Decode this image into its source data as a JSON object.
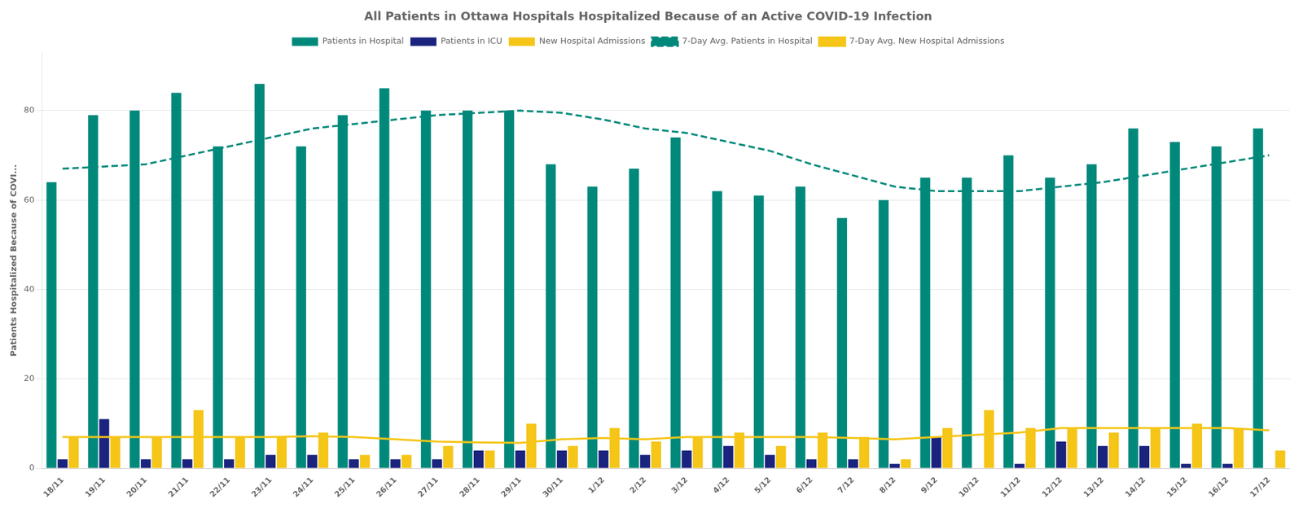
{
  "chart_data": {
    "type": "bar",
    "title": "All Patients in Ottawa Hospitals Hospitalized Because of an Active COVID-19 Infection",
    "ylabel": "Patients Hospitalized Because of COVI...",
    "categories": [
      "18/11",
      "19/11",
      "20/11",
      "21/11",
      "22/11",
      "23/11",
      "24/11",
      "25/11",
      "26/11",
      "27/11",
      "28/11",
      "29/11",
      "30/11",
      "1/12",
      "2/12",
      "3/12",
      "4/12",
      "5/12",
      "6/12",
      "7/12",
      "8/12",
      "9/12",
      "10/12",
      "11/12",
      "12/12",
      "13/12",
      "14/12",
      "15/12",
      "16/12",
      "17/12"
    ],
    "series": [
      {
        "name": "Patients in Hospital",
        "type": "bar",
        "color": "#00897b",
        "values": [
          64,
          79,
          80,
          84,
          72,
          86,
          72,
          79,
          85,
          80,
          80,
          80,
          68,
          63,
          67,
          74,
          62,
          61,
          63,
          56,
          60,
          65,
          65,
          70,
          65,
          68,
          76,
          73,
          72,
          76
        ]
      },
      {
        "name": "Patients in ICU",
        "type": "bar",
        "color": "#1a237e",
        "values": [
          2,
          11,
          2,
          2,
          2,
          3,
          3,
          2,
          2,
          2,
          4,
          4,
          4,
          4,
          3,
          4,
          5,
          3,
          2,
          2,
          1,
          7,
          0,
          1,
          6,
          5,
          5,
          1,
          1,
          0
        ]
      },
      {
        "name": "New Hospital Admissions",
        "type": "bar",
        "color": "#f5c518",
        "values": [
          7,
          7,
          7,
          13,
          7,
          7,
          8,
          3,
          3,
          5,
          4,
          10,
          5,
          9,
          6,
          7,
          8,
          5,
          8,
          7,
          2,
          9,
          13,
          9,
          9,
          8,
          9,
          10,
          9,
          4
        ]
      },
      {
        "name": "7-Day Avg. Patients in Hospital",
        "type": "line",
        "color": "#00897b",
        "line_style": "dashed",
        "marker": "none",
        "values": [
          67,
          67.5,
          68,
          70,
          72,
          74,
          76,
          77,
          78,
          79,
          79.5,
          80,
          79.5,
          78,
          76,
          75,
          73,
          71,
          68,
          65.5,
          63,
          62,
          62,
          62,
          63,
          64,
          65.5,
          67,
          68.5,
          70
        ]
      },
      {
        "name": "7-Day Avg. New Hospital Admissions",
        "type": "line",
        "color": "#f5c518",
        "line_style": "solid",
        "marker": "none",
        "values": [
          7,
          7,
          7,
          7,
          7,
          7,
          7.2,
          7,
          6.5,
          6,
          5.8,
          5.7,
          6.5,
          6.8,
          6.5,
          7,
          7,
          7,
          7,
          6.8,
          6.5,
          7,
          7.5,
          8,
          9,
          9,
          9,
          9,
          9,
          8.5
        ]
      }
    ],
    "ylim": [
      0,
      93
    ],
    "yticks": [
      0,
      20,
      40,
      60,
      80
    ],
    "grid": true,
    "legend": "top"
  }
}
